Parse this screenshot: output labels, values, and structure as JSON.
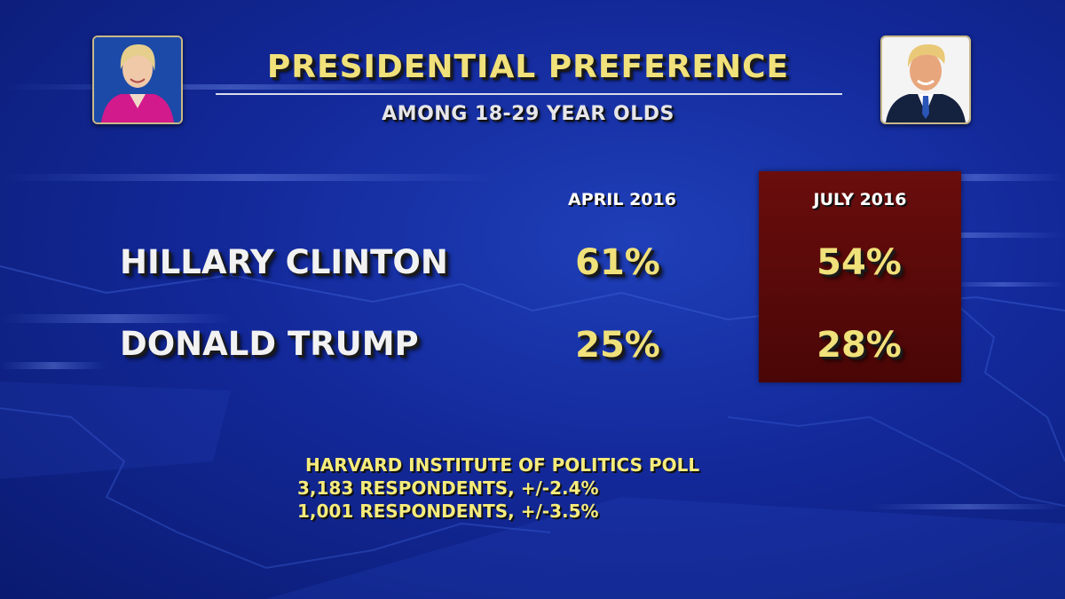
{
  "chart_data": {
    "type": "table",
    "title": "PRESIDENTIAL PREFERENCE",
    "subtitle": "AMONG 18-29 YEAR OLDS",
    "columns": [
      "APRIL 2016",
      "JULY 2016"
    ],
    "highlighted_column": "JULY 2016",
    "highlight_color": "#5a0909",
    "rows": [
      {
        "label": "HILLARY CLINTON",
        "values": [
          "61%",
          "54%"
        ]
      },
      {
        "label": "DONALD TRUMP",
        "values": [
          "25%",
          "28%"
        ]
      }
    ],
    "values_numeric": [
      [
        61,
        54
      ],
      [
        25,
        28
      ]
    ],
    "source_lines": [
      "HARVARD INSTITUTE OF POLITICS POLL",
      "3,183 RESPONDENTS, +/-2.4%",
      "1,001 RESPONDENTS, +/-3.5%"
    ]
  },
  "colors": {
    "background": "#13299a",
    "accent_text": "#f1e17a",
    "label_text": "#f2f2f2"
  },
  "icons": [
    "clinton-portrait",
    "trump-portrait"
  ]
}
